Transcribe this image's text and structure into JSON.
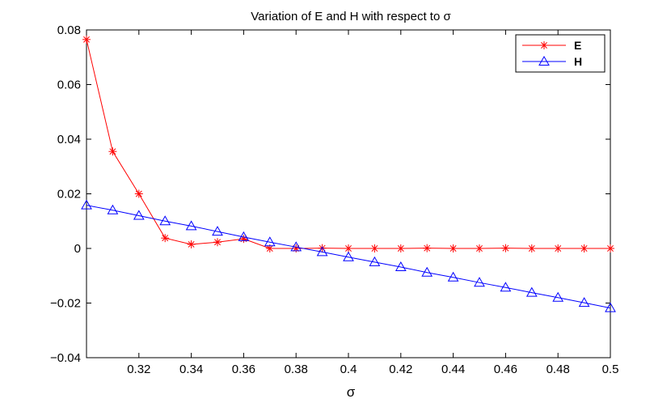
{
  "chart_data": {
    "type": "line",
    "title": "Variation of E and H with respect to σ",
    "xlabel": "σ",
    "ylabel": "",
    "xlim": [
      0.3,
      0.5
    ],
    "ylim": [
      -0.04,
      0.08
    ],
    "x": [
      0.3,
      0.31,
      0.32,
      0.33,
      0.34,
      0.35,
      0.36,
      0.37,
      0.38,
      0.39,
      0.4,
      0.41,
      0.42,
      0.43,
      0.44,
      0.45,
      0.46,
      0.47,
      0.48,
      0.49,
      0.5
    ],
    "xticks": [
      0.32,
      0.34,
      0.36,
      0.38,
      0.4,
      0.42,
      0.44,
      0.46,
      0.48,
      0.5
    ],
    "xtick_labels": [
      "0.32",
      "0.34",
      "0.36",
      "0.38",
      "0.4",
      "0.42",
      "0.44",
      "0.46",
      "0.48",
      "0.5"
    ],
    "yticks": [
      -0.04,
      -0.02,
      0,
      0.02,
      0.04,
      0.06,
      0.08
    ],
    "ytick_labels": [
      "−0.04",
      "−0.02",
      "0",
      "0.02",
      "0.04",
      "0.06",
      "0.08"
    ],
    "legend_position": "top-right",
    "grid": false,
    "series": [
      {
        "name": "E",
        "color": "#ff0000",
        "marker": "asterisk",
        "values": [
          0.0765,
          0.0355,
          0.02,
          0.0038,
          0.0015,
          0.0023,
          0.0035,
          0.0,
          0.0,
          0.0001,
          0.0,
          0.0,
          0.0,
          0.0001,
          0.0,
          0.0,
          0.0001,
          0.0,
          0.0,
          0.0,
          0.0
        ]
      },
      {
        "name": "H",
        "color": "#0000ff",
        "marker": "triangle",
        "values": [
          0.0158,
          0.014,
          0.012,
          0.01,
          0.0082,
          0.0062,
          0.0042,
          0.0023,
          0.0005,
          -0.0013,
          -0.0032,
          -0.005,
          -0.0068,
          -0.0088,
          -0.0106,
          -0.0125,
          -0.0143,
          -0.0162,
          -0.018,
          -0.0199,
          -0.0218
        ]
      }
    ]
  }
}
